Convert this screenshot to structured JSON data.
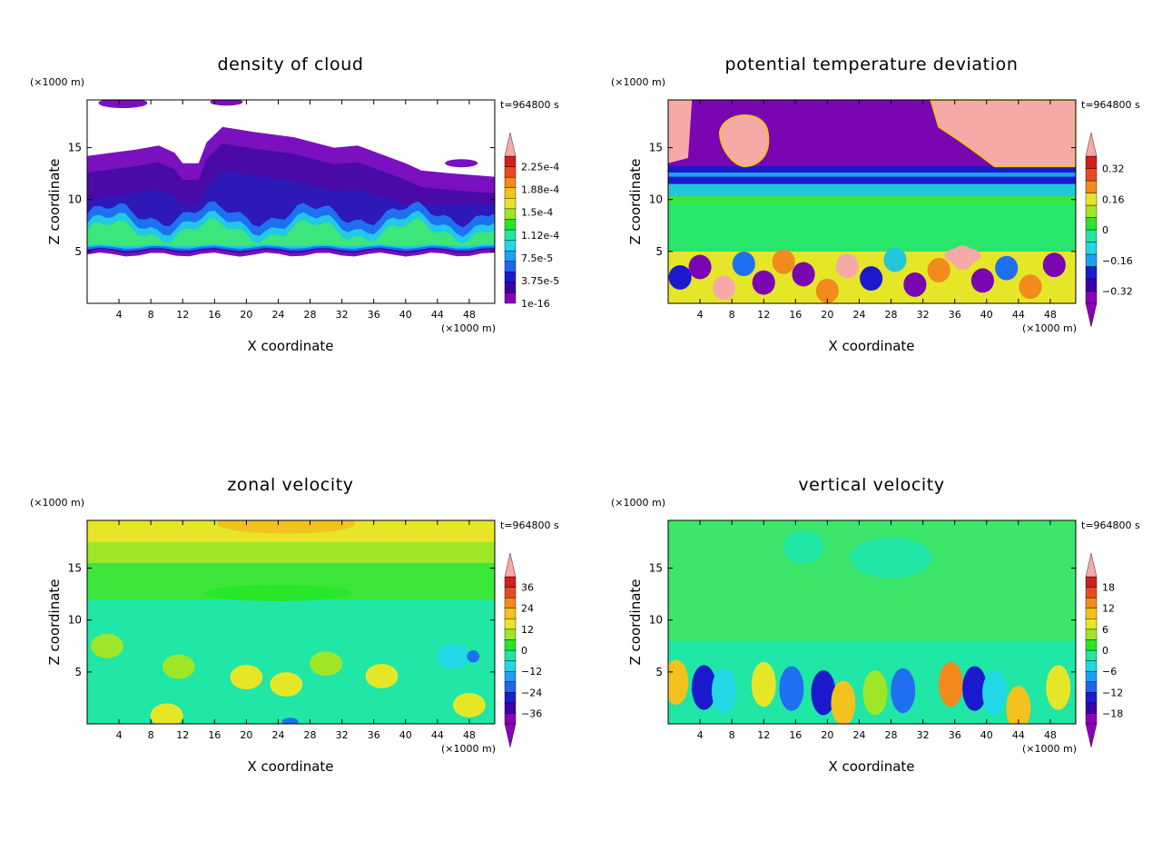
{
  "chart_data": [
    {
      "type": "heatmap",
      "title": "density of cloud",
      "xlabel": "X coordinate",
      "ylabel": "Z coordinate",
      "x_unit": "(×1000 m)",
      "y_unit": "(×1000 m)",
      "time_label": "t=964800 s",
      "xlim": [
        0,
        51.2
      ],
      "ylim": [
        0,
        19.6
      ],
      "xticks": [
        4,
        8,
        12,
        16,
        20,
        24,
        28,
        32,
        36,
        40,
        44,
        48
      ],
      "yticks": [
        5,
        10,
        15
      ],
      "colorbar": {
        "labels": [
          "2.25e-4",
          "1.88e-4",
          "1.5e-4",
          "1.12e-4",
          "7.5e-5",
          "3.75e-5",
          "1e-16"
        ],
        "levels": 14,
        "extend_top": true,
        "extend_bottom": false
      }
    },
    {
      "type": "heatmap",
      "title": "potential temperature deviation",
      "xlabel": "X coordinate",
      "ylabel": "Z coordinate",
      "x_unit": "(×1000 m)",
      "y_unit": "(×1000 m)",
      "time_label": "t=964800 s",
      "xlim": [
        0,
        51.2
      ],
      "ylim": [
        0,
        19.6
      ],
      "xticks": [
        4,
        8,
        12,
        16,
        20,
        24,
        28,
        32,
        36,
        40,
        44,
        48
      ],
      "yticks": [
        5,
        10,
        15
      ],
      "colorbar": {
        "labels": [
          "0.32",
          "0.16",
          "0",
          "−0.16",
          "−0.32"
        ],
        "levels": 12,
        "extend_top": true,
        "extend_bottom": true
      }
    },
    {
      "type": "heatmap",
      "title": "zonal velocity",
      "xlabel": "X coordinate",
      "ylabel": "Z coordinate",
      "x_unit": "(×1000 m)",
      "y_unit": "(×1000 m)",
      "time_label": "t=964800 s",
      "xlim": [
        0,
        51.2
      ],
      "ylim": [
        0,
        19.6
      ],
      "xticks": [
        4,
        8,
        12,
        16,
        20,
        24,
        28,
        32,
        36,
        40,
        44,
        48
      ],
      "yticks": [
        5,
        10,
        15
      ],
      "colorbar": {
        "labels": [
          "36",
          "24",
          "12",
          "0",
          "−12",
          "−24",
          "−36"
        ],
        "levels": 14,
        "extend_top": true,
        "extend_bottom": true
      }
    },
    {
      "type": "heatmap",
      "title": "vertical velocity",
      "xlabel": "X coordinate",
      "ylabel": "Z coordinate",
      "x_unit": "(×1000 m)",
      "y_unit": "(×1000 m)",
      "time_label": "t=964800 s",
      "xlim": [
        0,
        51.2
      ],
      "ylim": [
        0,
        19.6
      ],
      "xticks": [
        4,
        8,
        12,
        16,
        20,
        24,
        28,
        32,
        36,
        40,
        44,
        48
      ],
      "yticks": [
        5,
        10,
        15
      ],
      "colorbar": {
        "labels": [
          "18",
          "12",
          "6",
          "0",
          "−6",
          "−12",
          "−18"
        ],
        "levels": 14,
        "extend_top": true,
        "extend_bottom": true
      }
    }
  ]
}
